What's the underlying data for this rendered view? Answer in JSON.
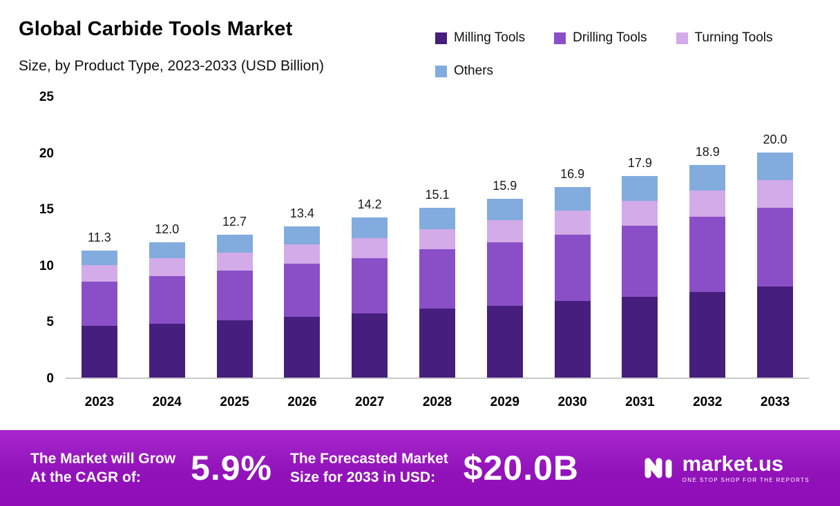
{
  "chart": {
    "title": "Global Carbide Tools Market",
    "subtitle": "Size, by Product Type, 2023-2033 (USD Billion)"
  },
  "chart_data": {
    "type": "bar",
    "stacked": true,
    "title": "Global Carbide Tools Market Size, by Product Type, 2023-2033 (USD Billion)",
    "categories": [
      "2023",
      "2024",
      "2025",
      "2026",
      "2027",
      "2028",
      "2029",
      "2030",
      "2031",
      "2032",
      "2033"
    ],
    "totals": [
      11.3,
      12.0,
      12.7,
      13.4,
      14.2,
      15.1,
      15.9,
      16.9,
      17.9,
      18.9,
      20.0
    ],
    "series": [
      {
        "name": "Milling Tools",
        "color": "#461e7d",
        "values": [
          4.6,
          4.8,
          5.1,
          5.4,
          5.7,
          6.1,
          6.4,
          6.8,
          7.2,
          7.6,
          8.1
        ]
      },
      {
        "name": "Drilling Tools",
        "color": "#8a4fc7",
        "values": [
          3.9,
          4.2,
          4.4,
          4.7,
          4.9,
          5.3,
          5.6,
          5.9,
          6.3,
          6.7,
          7.0
        ]
      },
      {
        "name": "Turning Tools",
        "color": "#d2abe8",
        "values": [
          1.5,
          1.6,
          1.6,
          1.7,
          1.8,
          1.8,
          2.0,
          2.1,
          2.2,
          2.3,
          2.4
        ]
      },
      {
        "name": "Others",
        "color": "#82abde",
        "values": [
          1.3,
          1.4,
          1.6,
          1.6,
          1.8,
          1.9,
          1.9,
          2.1,
          2.2,
          2.3,
          2.5
        ]
      }
    ],
    "xlabel": "",
    "ylabel": "",
    "ylim": [
      0,
      25
    ],
    "yticks": [
      0,
      5,
      10,
      15,
      20,
      25
    ],
    "legend_position": "top-right",
    "grid": false
  },
  "banner": {
    "cagr_label_line1": "The Market will Grow",
    "cagr_label_line2": "At the CAGR of:",
    "cagr_value": "5.9%",
    "forecast_label_line1": "The Forecasted Market",
    "forecast_label_line2": "Size for 2033 in USD:",
    "forecast_value": "$20.0B",
    "brand": "market.us",
    "brand_tagline": "One Stop Shop For The Reports"
  }
}
